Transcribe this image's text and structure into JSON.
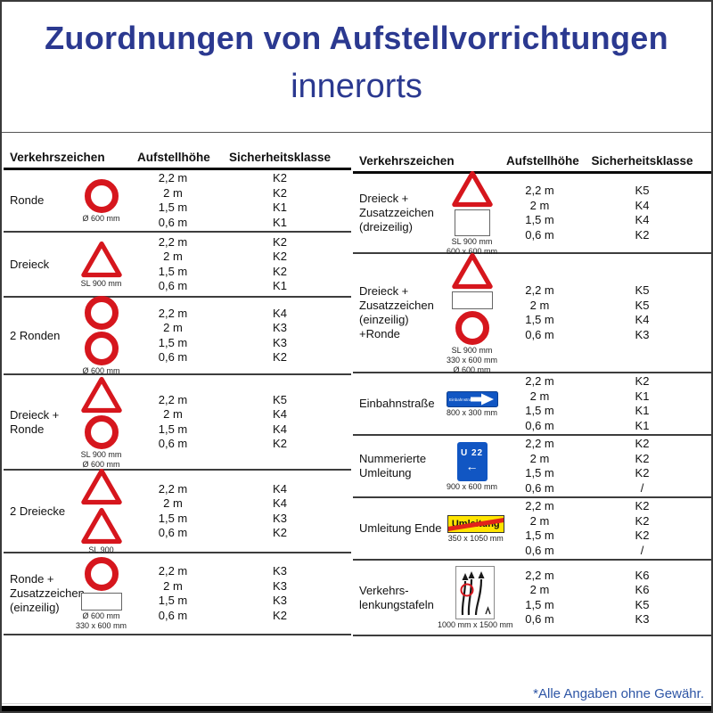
{
  "title": {
    "line1": "Zuordnungen von Aufstellvorrichtungen",
    "line2": "innerorts"
  },
  "footnote": "*Alle Angaben ohne Gewähr.",
  "columns": {
    "sign": "Verkehrszeichen",
    "height": "Aufstellhöhe",
    "class": "Sicherheitsklasse"
  },
  "colors": {
    "title_blue": "#2b3990",
    "footnote_blue": "#2d55a5",
    "sign_red": "#d6161d",
    "sign_blue": "#1156c3",
    "sign_yellow": "#ffe400"
  },
  "tables": {
    "left": {
      "rows": [
        {
          "label_lines": [
            "Ronde"
          ],
          "icons": [
            {
              "type": "circle",
              "name": "ronde-icon"
            }
          ],
          "captions": [
            "Ø 600 mm"
          ],
          "heights": [
            "2,2 m",
            "2 m",
            "1,5 m",
            "0,6 m"
          ],
          "classes": [
            "K2",
            "K2",
            "K1",
            "K1"
          ]
        },
        {
          "label_lines": [
            "Dreieck"
          ],
          "icons": [
            {
              "type": "triangle",
              "name": "dreieck-icon"
            }
          ],
          "captions": [
            "SL 900 mm"
          ],
          "heights": [
            "2,2 m",
            "2 m",
            "1,5 m",
            "0,6 m"
          ],
          "classes": [
            "K2",
            "K2",
            "K2",
            "K1"
          ]
        },
        {
          "label_lines": [
            "2 Ronden"
          ],
          "icons": [
            {
              "type": "circle",
              "name": "ronde-icon"
            },
            {
              "type": "circle",
              "name": "ronde-icon"
            }
          ],
          "captions": [
            "Ø 600 mm"
          ],
          "heights": [
            "2,2 m",
            "2 m",
            "1,5 m",
            "0,6 m"
          ],
          "classes": [
            "K4",
            "K3",
            "K3",
            "K2"
          ]
        },
        {
          "label_lines": [
            "Dreieck +",
            "Ronde"
          ],
          "icons": [
            {
              "type": "triangle",
              "name": "dreieck-icon"
            },
            {
              "type": "circle",
              "name": "ronde-icon"
            }
          ],
          "captions": [
            "SL 900 mm",
            "Ø 600 mm"
          ],
          "heights": [
            "2,2 m",
            "2 m",
            "1,5 m",
            "0,6 m"
          ],
          "classes": [
            "K5",
            "K4",
            "K4",
            "K2"
          ]
        },
        {
          "label_lines": [
            "2 Dreiecke"
          ],
          "icons": [
            {
              "type": "triangle",
              "name": "dreieck-icon"
            },
            {
              "type": "triangle",
              "name": "dreieck-icon"
            }
          ],
          "captions": [
            "SL 900"
          ],
          "heights": [
            "2,2 m",
            "2 m",
            "1,5 m",
            "0,6 m"
          ],
          "classes": [
            "K4",
            "K4",
            "K3",
            "K2"
          ]
        },
        {
          "label_lines": [
            "Ronde +",
            "Zusatzzeichen",
            "(einzeilig)"
          ],
          "icons": [
            {
              "type": "circle",
              "name": "ronde-icon"
            },
            {
              "type": "rect",
              "variant": "einzeilig",
              "name": "zusatzzeichen-icon"
            }
          ],
          "captions": [
            "Ø 600 mm",
            "330 x 600 mm"
          ],
          "heights": [
            "2,2 m",
            "2 m",
            "1,5 m",
            "0,6 m"
          ],
          "classes": [
            "K3",
            "K3",
            "K3",
            "K2"
          ]
        }
      ]
    },
    "right": {
      "rows": [
        {
          "label_lines": [
            "Dreieck +",
            "Zusatzzeichen",
            "(dreizeilig)"
          ],
          "icons": [
            {
              "type": "triangle",
              "name": "dreieck-icon"
            },
            {
              "type": "rect",
              "variant": "dreizeilig",
              "name": "zusatzzeichen-icon"
            }
          ],
          "captions": [
            "SL 900 mm",
            "600 x 600 mm"
          ],
          "heights": [
            "2,2 m",
            "2 m",
            "1,5 m",
            "0,6 m"
          ],
          "classes": [
            "K5",
            "K4",
            "K4",
            "K2"
          ]
        },
        {
          "label_lines": [
            "Dreieck +",
            "Zusatzzeichen",
            "(einzeilig)",
            "+Ronde"
          ],
          "icons": [
            {
              "type": "triangle",
              "name": "dreieck-icon"
            },
            {
              "type": "rect",
              "variant": "einzeilig",
              "name": "zusatzzeichen-icon"
            },
            {
              "type": "circle",
              "name": "ronde-icon"
            }
          ],
          "captions": [
            "SL 900 mm",
            "330 x 600 mm",
            "Ø 600 mm"
          ],
          "heights": [
            "2,2 m",
            "2 m",
            "1,5 m",
            "0,6 m"
          ],
          "classes": [
            "K5",
            "K5",
            "K4",
            "K3"
          ]
        },
        {
          "label_lines": [
            "Einbahnstraße"
          ],
          "icons": [
            {
              "type": "einbahn",
              "name": "einbahnstrasse-sign-icon",
              "text": "Einbahnstraße"
            }
          ],
          "captions": [
            "800 x 300 mm"
          ],
          "heights": [
            "2,2 m",
            "2 m",
            "1,5 m",
            "0,6 m"
          ],
          "classes": [
            "K2",
            "K1",
            "K1",
            "K1"
          ]
        },
        {
          "label_lines": [
            "Nummerierte",
            "Umleitung"
          ],
          "icons": [
            {
              "type": "u22",
              "name": "nummerierte-umleitung-sign-icon",
              "line1": "U 22",
              "arrow": "←"
            }
          ],
          "captions": [
            "900 x 600 mm"
          ],
          "heights": [
            "2,2 m",
            "2 m",
            "1,5 m",
            "0,6 m"
          ],
          "classes": [
            "K2",
            "K2",
            "K2",
            "/"
          ]
        },
        {
          "label_lines": [
            "Umleitung Ende"
          ],
          "icons": [
            {
              "type": "umleitung_ende",
              "name": "umleitung-ende-sign-icon",
              "text": "Umleitung"
            }
          ],
          "captions": [
            "350 x 1050 mm"
          ],
          "heights": [
            "2,2 m",
            "2 m",
            "1,5 m",
            "0,6 m"
          ],
          "classes": [
            "K2",
            "K2",
            "K2",
            "/"
          ]
        },
        {
          "label_lines": [
            "Verkehrs-",
            "lenkungstafeln"
          ],
          "icons": [
            {
              "type": "lenkungstafel",
              "name": "verkehrslenkungstafel-icon"
            }
          ],
          "captions": [
            "1000 mm x 1500 mm"
          ],
          "heights": [
            "2,2 m",
            "2 m",
            "1,5 m",
            "0,6 m"
          ],
          "classes": [
            "K6",
            "K6",
            "K5",
            "K3"
          ]
        }
      ]
    }
  }
}
